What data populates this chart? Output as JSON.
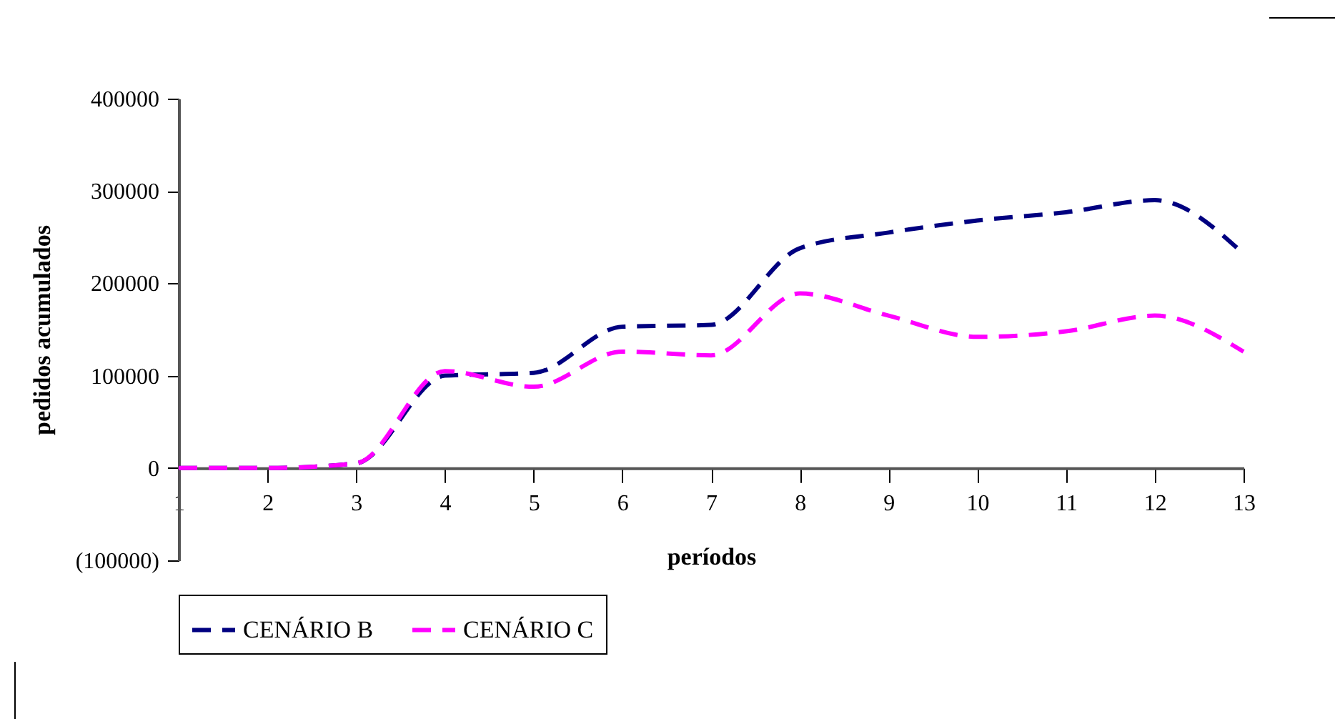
{
  "chart_data": {
    "type": "line",
    "xlabel": "períodos",
    "ylabel": "pedidos acumulados",
    "x": [
      1,
      2,
      3,
      4,
      5,
      6,
      7,
      8,
      9,
      10,
      11,
      12,
      13
    ],
    "series": [
      {
        "name": "CENÁRIO B",
        "color": "#000080",
        "values": [
          0,
          0,
          5000,
          100000,
          103000,
          153000,
          155000,
          238000,
          255000,
          268000,
          277000,
          290000,
          232000
        ]
      },
      {
        "name": "CENÁRIO C",
        "color": "#ff00ff",
        "values": [
          0,
          0,
          5000,
          105000,
          88000,
          126000,
          122000,
          189000,
          165000,
          142000,
          148000,
          165000,
          126000
        ]
      }
    ],
    "xlim": [
      1,
      13
    ],
    "xticks": [
      1,
      2,
      3,
      4,
      5,
      6,
      7,
      8,
      9,
      10,
      11,
      12,
      13
    ],
    "ylim": [
      -100000,
      400000
    ],
    "yticks": [
      {
        "value": -100000,
        "label": "(100000)"
      },
      0,
      100000,
      200000,
      300000,
      400000
    ],
    "grid": false,
    "legend": "bottom",
    "line_style": "dashed",
    "marker": "none"
  }
}
